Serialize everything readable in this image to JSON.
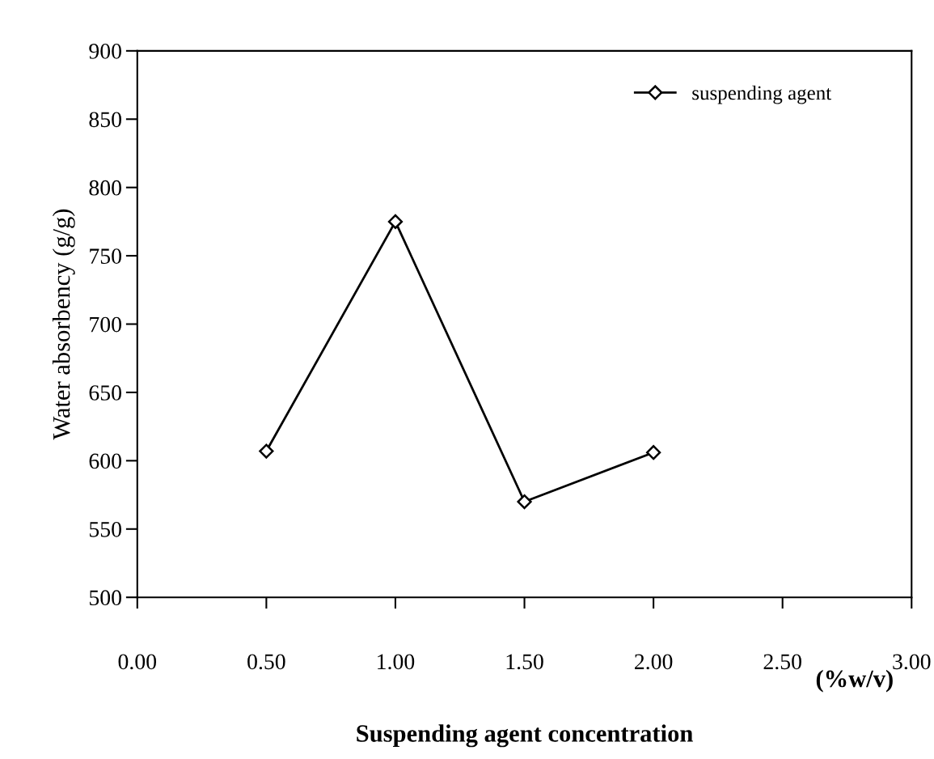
{
  "chart_data": {
    "type": "line",
    "xlabel": "Suspending agent concentration",
    "ylabel": "Water absorbency (g/g)",
    "annotations": [
      "(%w/v)"
    ],
    "x": [
      0.5,
      1.0,
      1.5,
      2.0
    ],
    "series": [
      {
        "name": "suspending agent",
        "color": "#000000",
        "values": [
          607,
          775,
          570,
          606
        ]
      }
    ],
    "xlim": [
      0,
      3
    ],
    "xticks": [
      {
        "value": 0,
        "label": "0.00"
      },
      {
        "value": 0.5,
        "label": "0.50"
      },
      {
        "value": 1,
        "label": "1.00"
      },
      {
        "value": 1.5,
        "label": "1.50"
      },
      {
        "value": 2,
        "label": "2.00"
      },
      {
        "value": 2.5,
        "label": "2.50"
      },
      {
        "value": 3,
        "label": "3.00"
      }
    ],
    "ylim": [
      500,
      900
    ],
    "yticks": [
      500,
      550,
      600,
      650,
      700,
      750,
      800,
      850,
      900
    ],
    "legend": "top right",
    "marker": "diamond",
    "line_style": "solid",
    "grid": false
  }
}
